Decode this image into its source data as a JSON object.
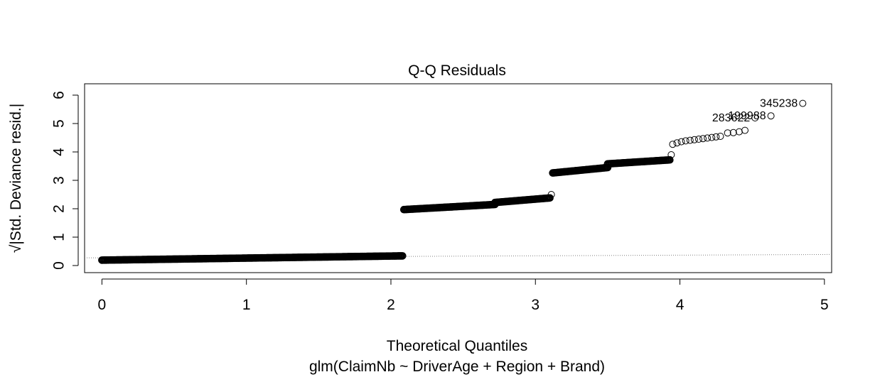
{
  "chart_data": {
    "type": "scatter",
    "title": "Q-Q Residuals",
    "xlabel": "Theoretical Quantiles",
    "subtitle": "glm(ClaimNb ~ DriverAge + Region + Brand)",
    "ylabel": "√|Std. Deviance resid.|",
    "xlim": [
      -0.12,
      5.05
    ],
    "ylim": [
      -0.25,
      6.4
    ],
    "xticks": [
      "0",
      "1",
      "2",
      "3",
      "4",
      "5"
    ],
    "yticks": [
      "0",
      "1",
      "2",
      "3",
      "4",
      "5",
      "6"
    ],
    "grid": false,
    "legend": "none",
    "point_color": "#000000",
    "reference_line": {
      "style": "dotted",
      "color": "#808080",
      "points": [
        [
          -0.12,
          0.27
        ],
        [
          5.05,
          0.39
        ]
      ]
    },
    "dense_segments": [
      {
        "x": [
          0.0,
          2.08
        ],
        "y": [
          0.19,
          0.34
        ]
      },
      {
        "x": [
          2.09,
          2.72
        ],
        "y": [
          1.97,
          2.15
        ]
      },
      {
        "x": [
          2.72,
          3.1
        ],
        "y": [
          2.22,
          2.38
        ]
      },
      {
        "x": [
          3.12,
          3.5
        ],
        "y": [
          3.26,
          3.45
        ]
      },
      {
        "x": [
          3.5,
          3.93
        ],
        "y": [
          3.58,
          3.72
        ]
      }
    ],
    "points": [
      [
        3.11,
        2.5
      ],
      [
        3.94,
        3.9
      ],
      [
        3.95,
        4.27
      ],
      [
        3.98,
        4.32
      ],
      [
        4.01,
        4.36
      ],
      [
        4.04,
        4.39
      ],
      [
        4.07,
        4.41
      ],
      [
        4.1,
        4.43
      ],
      [
        4.13,
        4.45
      ],
      [
        4.16,
        4.47
      ],
      [
        4.19,
        4.49
      ],
      [
        4.22,
        4.51
      ],
      [
        4.25,
        4.53
      ],
      [
        4.28,
        4.55
      ],
      [
        4.33,
        4.67
      ],
      [
        4.37,
        4.68
      ],
      [
        4.41,
        4.71
      ],
      [
        4.45,
        4.76
      ],
      [
        4.52,
        5.2
      ],
      [
        4.63,
        5.27
      ],
      [
        4.85,
        5.71
      ]
    ],
    "labeled_points": [
      {
        "label": "345238",
        "x": 4.85,
        "y": 5.71
      },
      {
        "label": "199988",
        "x": 4.63,
        "y": 5.27
      },
      {
        "label": "283622",
        "x": 4.52,
        "y": 5.2
      }
    ]
  }
}
